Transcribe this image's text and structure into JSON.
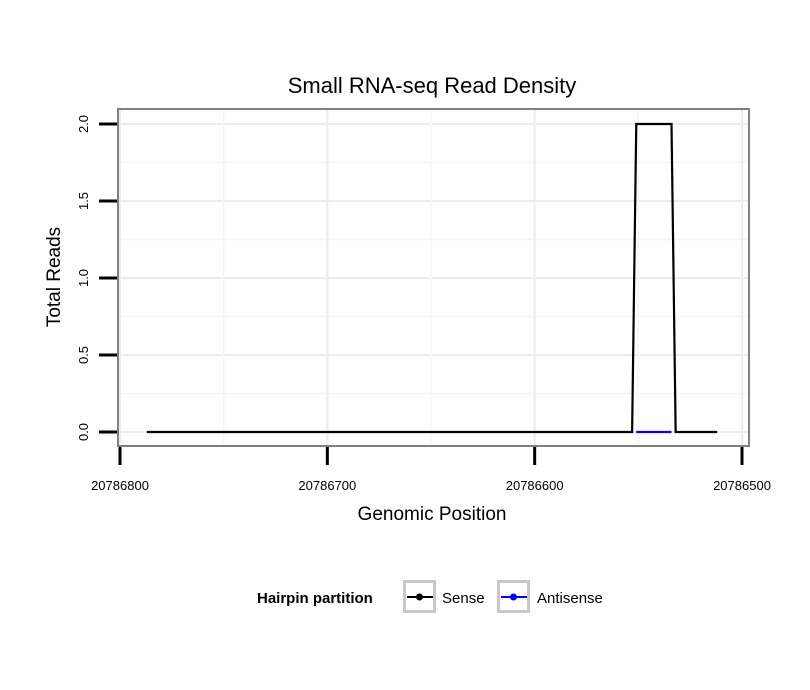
{
  "chart_data": {
    "type": "line",
    "title": "Small RNA-seq Read Density",
    "xlabel": "Genomic Position",
    "ylabel": "Total Reads",
    "x_reversed": true,
    "xlim": [
      20786800,
      20786500
    ],
    "ylim": [
      0,
      2
    ],
    "x_ticks": [
      20786800,
      20786700,
      20786600,
      20786500
    ],
    "x_tick_labels": [
      "20786800",
      "20786700",
      "20786600",
      "20786500"
    ],
    "y_ticks": [
      0,
      0.5,
      1,
      1.5,
      2
    ],
    "y_tick_labels": [
      "0.0",
      "0.5",
      "1.0",
      "1.5",
      "2.0"
    ],
    "grid": true,
    "legend": {
      "title": "Hairpin partition",
      "placement": "bottom"
    },
    "series": [
      {
        "name": "Sense",
        "color": "#000000",
        "x": [
          20786787,
          20786553,
          20786551,
          20786534,
          20786532,
          20786512
        ],
        "y": [
          0,
          0,
          2,
          2,
          0,
          0
        ]
      },
      {
        "name": "Antisense",
        "color": "#0000ff",
        "x": [
          20786551,
          20786534
        ],
        "y": [
          0,
          0
        ]
      }
    ]
  }
}
